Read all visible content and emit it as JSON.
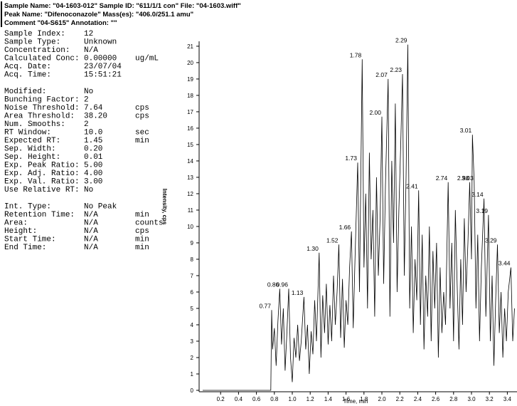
{
  "header": {
    "lines": [
      "Sample Name: \"04-1603-012\"   Sample ID: \"611/1/1 con\"   File: \"04-1603.wiff\"",
      "Peak Name: \"Difenoconazole\"   Mass(es): \"406.0/251.1 amu\"",
      "Comment \"04-S615\"   Annotation: \"\""
    ]
  },
  "parameters": {
    "groups": [
      [
        {
          "label": "Sample Index:",
          "value": "12"
        },
        {
          "label": "Sample Type:",
          "value": "Unknown"
        },
        {
          "label": "Concentration:",
          "value": "N/A"
        },
        {
          "label": "Calculated Conc:",
          "value": "0.00000",
          "unit": "ug/mL"
        },
        {
          "label": "Acq. Date:",
          "value": "23/07/04"
        },
        {
          "label": "Acq. Time:",
          "value": "15:51:21"
        }
      ],
      [
        {
          "label": "Modified:",
          "value": "No"
        },
        {
          "label": "Bunching Factor:",
          "value": "2"
        },
        {
          "label": "Noise Threshold:",
          "value": "7.64",
          "unit": "cps"
        },
        {
          "label": "Area Threshold:",
          "value": "38.20",
          "unit": "cps"
        },
        {
          "label": "Num. Smooths:",
          "value": "2"
        },
        {
          "label": "RT Window:",
          "value": "10.0",
          "unit": "sec"
        },
        {
          "label": "Expected RT:",
          "value": "1.45",
          "unit": "min"
        },
        {
          "label": "Sep. Width:",
          "value": "0.20"
        },
        {
          "label": "Sep. Height:",
          "value": "0.01"
        },
        {
          "label": "Exp. Peak Ratio:",
          "value": "5.00"
        },
        {
          "label": "Exp. Adj. Ratio:",
          "value": "4.00"
        },
        {
          "label": "Exp. Val. Ratio:",
          "value": "3.00"
        },
        {
          "label": "Use Relative RT:",
          "value": "No"
        }
      ],
      [
        {
          "label": "Int. Type:",
          "value": "No Peak"
        },
        {
          "label": "Retention Time:",
          "value": "N/A",
          "unit": "min"
        },
        {
          "label": "Area:",
          "value": "N/A",
          "unit": "counts"
        },
        {
          "label": "Height:",
          "value": "N/A",
          "unit": "cps"
        },
        {
          "label": "Start Time:",
          "value": "N/A",
          "unit": "min"
        },
        {
          "label": "End Time:",
          "value": "N/A",
          "unit": "min"
        }
      ]
    ]
  },
  "chart_data": {
    "type": "line",
    "x_label": "Time, min",
    "y_label": "Intensity, cps",
    "x": [
      0,
      0.76,
      0.77,
      0.78,
      0.8,
      0.82,
      0.84,
      0.86,
      0.88,
      0.9,
      0.92,
      0.94,
      0.96,
      0.98,
      1.0,
      1.02,
      1.04,
      1.06,
      1.08,
      1.1,
      1.13,
      1.15,
      1.17,
      1.19,
      1.21,
      1.23,
      1.25,
      1.27,
      1.3,
      1.32,
      1.34,
      1.36,
      1.38,
      1.4,
      1.42,
      1.44,
      1.46,
      1.48,
      1.5,
      1.52,
      1.54,
      1.56,
      1.58,
      1.6,
      1.62,
      1.64,
      1.66,
      1.68,
      1.7,
      1.73,
      1.75,
      1.78,
      1.8,
      1.82,
      1.84,
      1.86,
      1.88,
      1.9,
      1.92,
      1.94,
      1.96,
      1.98,
      2.0,
      2.02,
      2.04,
      2.07,
      2.09,
      2.11,
      2.13,
      2.15,
      2.17,
      2.19,
      2.21,
      2.23,
      2.25,
      2.27,
      2.29,
      2.31,
      2.33,
      2.35,
      2.37,
      2.39,
      2.41,
      2.43,
      2.45,
      2.47,
      2.49,
      2.51,
      2.53,
      2.55,
      2.57,
      2.59,
      2.61,
      2.63,
      2.65,
      2.67,
      2.69,
      2.71,
      2.74,
      2.76,
      2.78,
      2.8,
      2.82,
      2.84,
      2.86,
      2.88,
      2.9,
      2.92,
      2.94,
      2.96,
      2.98,
      3.0,
      3.01,
      3.03,
      3.05,
      3.07,
      3.09,
      3.11,
      3.14,
      3.16,
      3.19,
      3.21,
      3.23,
      3.25,
      3.27,
      3.29,
      3.31,
      3.33,
      3.35,
      3.37,
      3.39,
      3.41,
      3.44,
      3.46,
      3.48
    ],
    "series": [
      {
        "color": "#000000",
        "values": [
          0,
          0,
          4.9,
          2.5,
          3.8,
          1.5,
          4.2,
          6.2,
          2.8,
          5.0,
          1.2,
          3.5,
          6.2,
          2.0,
          0.5,
          3.2,
          2.0,
          4.0,
          1.8,
          3.0,
          5.7,
          2.5,
          4.0,
          1.0,
          3.6,
          2.2,
          5.5,
          3.0,
          8.4,
          2.0,
          5.8,
          3.5,
          6.5,
          2.8,
          5.2,
          3.0,
          7.0,
          4.0,
          6.0,
          8.9,
          3.2,
          6.8,
          2.6,
          5.5,
          4.0,
          7.5,
          9.7,
          3.8,
          8.0,
          13.9,
          6.0,
          20.2,
          7.5,
          12.0,
          5.0,
          14.5,
          8.0,
          11.0,
          4.5,
          13.0,
          7.0,
          10.5,
          16.7,
          6.5,
          12.5,
          19.0,
          4.5,
          14.0,
          9.0,
          17.5,
          6.0,
          11.0,
          15.0,
          19.3,
          7.0,
          13.0,
          21.1,
          5.0,
          10.0,
          3.5,
          8.0,
          5.5,
          12.2,
          4.0,
          9.5,
          2.5,
          7.0,
          4.5,
          10.0,
          3.0,
          8.5,
          5.0,
          9.0,
          2.0,
          7.5,
          3.5,
          6.0,
          4.0,
          12.7,
          5.0,
          9.0,
          3.0,
          11.0,
          6.5,
          2.5,
          8.0,
          4.0,
          10.5,
          6.0,
          9.0,
          12.7,
          8.0,
          15.6,
          12.7,
          5.0,
          9.5,
          3.0,
          7.5,
          11.7,
          4.5,
          10.7,
          3.0,
          7.0,
          1.5,
          5.5,
          8.9,
          3.5,
          6.0,
          2.0,
          5.0,
          3.0,
          6.0,
          7.5,
          3.0,
          5.0
        ]
      }
    ],
    "annotations": [
      {
        "x": 0.77,
        "y": 4.9,
        "label": "0.77"
      },
      {
        "x": 0.86,
        "y": 6.2,
        "label": "0.86"
      },
      {
        "x": 0.96,
        "y": 6.2,
        "label": "0.96"
      },
      {
        "x": 1.13,
        "y": 5.7,
        "label": "1.13"
      },
      {
        "x": 1.3,
        "y": 8.4,
        "label": "1.30"
      },
      {
        "x": 1.52,
        "y": 8.9,
        "label": "1.52"
      },
      {
        "x": 1.66,
        "y": 9.7,
        "label": "1.66"
      },
      {
        "x": 1.73,
        "y": 13.9,
        "label": "1.73"
      },
      {
        "x": 1.78,
        "y": 20.2,
        "label": "1.78"
      },
      {
        "x": 2.0,
        "y": 16.7,
        "label": "2.00"
      },
      {
        "x": 2.07,
        "y": 19.0,
        "label": "2.07"
      },
      {
        "x": 2.23,
        "y": 19.3,
        "label": "2.23"
      },
      {
        "x": 2.29,
        "y": 21.1,
        "label": "2.29"
      },
      {
        "x": 2.41,
        "y": 12.2,
        "label": "2.41"
      },
      {
        "x": 2.74,
        "y": 12.7,
        "label": "2.74"
      },
      {
        "x": 2.98,
        "y": 12.7,
        "label": "2.98"
      },
      {
        "x": 3.01,
        "y": 15.6,
        "label": "3.01"
      },
      {
        "x": 3.03,
        "y": 12.7,
        "label": "3.03"
      },
      {
        "x": 3.14,
        "y": 11.7,
        "label": "3.14"
      },
      {
        "x": 3.19,
        "y": 10.7,
        "label": "3.19"
      },
      {
        "x": 3.29,
        "y": 8.9,
        "label": "3.29"
      },
      {
        "x": 3.44,
        "y": 7.5,
        "label": "3.44"
      }
    ],
    "xlim": [
      0,
      3.5
    ],
    "ylim": [
      0,
      21.3
    ],
    "xticks": [
      0.2,
      0.4,
      0.6,
      0.8,
      {
        "value": 1,
        "label": "1.0"
      },
      1.2,
      1.4,
      1.6,
      1.8,
      {
        "value": 2,
        "label": "2.0"
      },
      2.2,
      2.4,
      2.6,
      2.8,
      {
        "value": 3,
        "label": "3.0"
      },
      3.2,
      3.4
    ],
    "yticks": [
      0,
      1,
      2,
      3,
      4,
      5,
      6,
      7,
      8,
      9,
      10,
      11,
      12,
      13,
      14,
      15,
      16,
      17,
      18,
      19,
      20,
      21
    ]
  }
}
